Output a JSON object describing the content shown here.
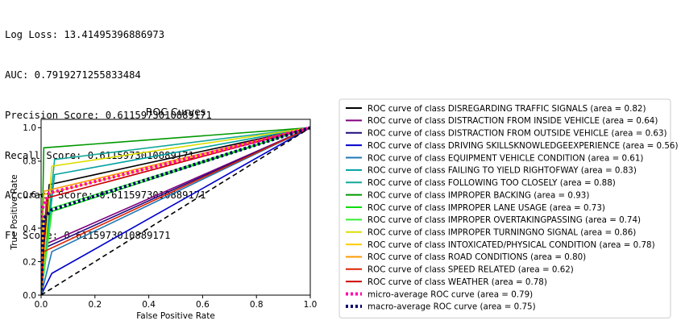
{
  "metrics": [
    "Log Loss: 13.41495396886973",
    "AUC: 0.7919271255833484",
    "Precision Score: 0.6115973010889171",
    "Recall Score: 0.6115973010889171",
    "Accuracy Score: 0.6115973010889171",
    "F1 Score: 0.6115973010889171"
  ],
  "chart_data": {
    "type": "line",
    "title": "ROC Curves",
    "xlabel": "False Positive Rate",
    "ylabel": "True Positive Rate",
    "xlim": [
      0.0,
      1.0
    ],
    "ylim": [
      0.0,
      1.05
    ],
    "xticks": [
      "0.0",
      "0.2",
      "0.4",
      "0.6",
      "0.8",
      "1.0"
    ],
    "yticks": [
      "0.0",
      "0.2",
      "0.4",
      "0.6",
      "0.8",
      "1.0"
    ],
    "grid": false,
    "legend_position": "outside-right",
    "series": [
      {
        "name": "ROC curve of class DISREGARDING TRAFFIC SIGNALS (area = 0.82)",
        "color": "#000000",
        "dash": "solid",
        "x": [
          0,
          0.03,
          1
        ],
        "y": [
          0,
          0.66,
          1
        ]
      },
      {
        "name": "ROC curve of class DISTRACTION  FROM INSIDE VEHICLE (area = 0.64)",
        "color": "#7f007f",
        "dash": "solid",
        "x": [
          0,
          0.01,
          1
        ],
        "y": [
          0,
          0.3,
          1
        ]
      },
      {
        "name": "ROC curve of class DISTRACTION  FROM OUTSIDE VEHICLE (area = 0.63)",
        "color": "#1f0a7f",
        "dash": "solid",
        "x": [
          0,
          0.01,
          1
        ],
        "y": [
          0,
          0.28,
          1
        ]
      },
      {
        "name": "ROC curve of class DRIVING SKILLSKNOWLEDGEEXPERIENCE (area = 0.56)",
        "color": "#0000cc",
        "dash": "solid",
        "x": [
          0,
          0.04,
          1
        ],
        "y": [
          0,
          0.13,
          1
        ]
      },
      {
        "name": "ROC curve of class EQUIPMENT  VEHICLE CONDITION (area = 0.61)",
        "color": "#1f77b4",
        "dash": "solid",
        "x": [
          0,
          0.04,
          1
        ],
        "y": [
          0,
          0.26,
          1
        ]
      },
      {
        "name": "ROC curve of class FAILING TO YIELD RIGHTOFWAY (area = 0.83)",
        "color": "#00a0a0",
        "dash": "solid",
        "x": [
          0,
          0.05,
          1
        ],
        "y": [
          0,
          0.72,
          1
        ]
      },
      {
        "name": "ROC curve of class FOLLOWING TOO CLOSELY (area = 0.88)",
        "color": "#12a89a",
        "dash": "solid",
        "x": [
          0,
          0.05,
          1
        ],
        "y": [
          0,
          0.81,
          1
        ]
      },
      {
        "name": "ROC curve of class IMPROPER BACKING (area = 0.93)",
        "color": "#009900",
        "dash": "solid",
        "x": [
          0,
          0.01,
          1
        ],
        "y": [
          0,
          0.88,
          1
        ]
      },
      {
        "name": "ROC curve of class IMPROPER LANE USAGE (area = 0.73)",
        "color": "#00dd00",
        "dash": "solid",
        "x": [
          0,
          0.04,
          1
        ],
        "y": [
          0,
          0.5,
          1
        ]
      },
      {
        "name": "ROC curve of class IMPROPER OVERTAKINGPASSING (area = 0.74)",
        "color": "#33ee33",
        "dash": "solid",
        "x": [
          0,
          0.04,
          1
        ],
        "y": [
          0,
          0.52,
          1
        ]
      },
      {
        "name": "ROC curve of class IMPROPER TURNINGNO SIGNAL (area = 0.86)",
        "color": "#dddd00",
        "dash": "solid",
        "x": [
          0,
          0.04,
          1
        ],
        "y": [
          0,
          0.77,
          1
        ]
      },
      {
        "name": "ROC curve of class INTOXICATED/PHYSICAL CONDITION (area = 0.78)",
        "color": "#ffcc00",
        "dash": "solid",
        "x": [
          0,
          0.01,
          1
        ],
        "y": [
          0,
          0.6,
          1
        ]
      },
      {
        "name": "ROC curve of class ROAD CONDITIONS (area = 0.80)",
        "color": "#ff9900",
        "dash": "solid",
        "x": [
          0,
          0.01,
          1
        ],
        "y": [
          0,
          0.62,
          1
        ]
      },
      {
        "name": "ROC curve of class SPEED RELATED (area = 0.62)",
        "color": "#dd2200",
        "dash": "solid",
        "x": [
          0,
          0.01,
          1
        ],
        "y": [
          0,
          0.26,
          1
        ]
      },
      {
        "name": "ROC curve of class WEATHER (area = 0.78)",
        "color": "#cc0000",
        "dash": "solid",
        "x": [
          0,
          0.02,
          1
        ],
        "y": [
          0,
          0.58,
          1
        ]
      },
      {
        "name": "micro-average ROC curve (area = 0.79)",
        "color": "#ff00aa",
        "dash": "dotted",
        "x": [
          0,
          0.0,
          0.03,
          1
        ],
        "y": [
          0,
          0.5,
          0.61,
          1
        ]
      },
      {
        "name": "macro-average ROC curve (area = 0.75)",
        "color": "#000066",
        "dash": "dotted",
        "x": [
          0,
          0.01,
          0.04,
          1
        ],
        "y": [
          0,
          0.46,
          0.51,
          1
        ]
      }
    ],
    "reference_line": {
      "color": "#000000",
      "dash": "dashed",
      "x": [
        0,
        1
      ],
      "y": [
        0,
        1
      ]
    }
  }
}
